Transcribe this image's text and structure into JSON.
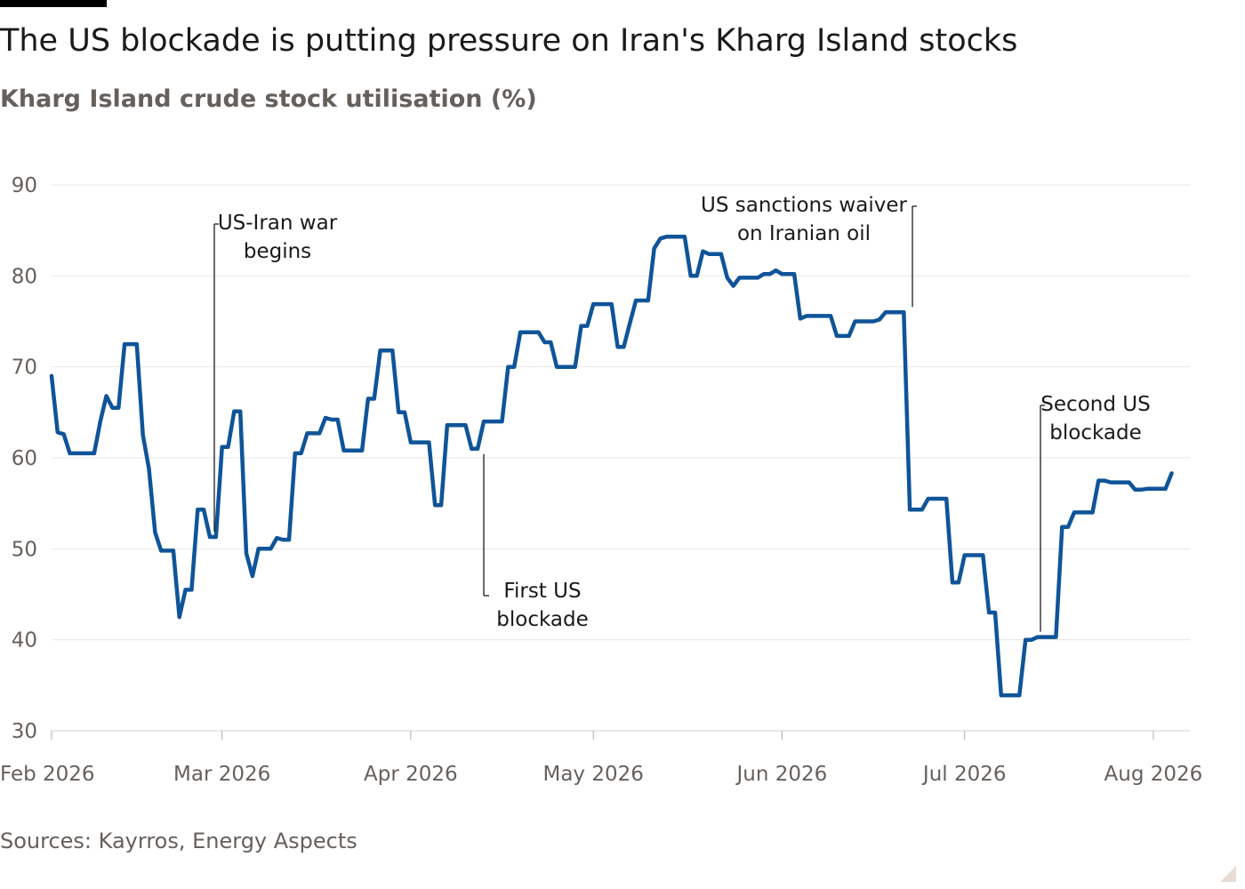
{
  "header": {
    "title": "The US blockade is putting pressure on Iran's Kharg Island stocks",
    "subtitle": "Kharg Island crude stock utilisation (%)"
  },
  "footer": {
    "source": "Sources: Kayrros, Energy Aspects"
  },
  "colors": {
    "line": "#0f5499",
    "grid": "#ece6e1",
    "text": "#1a1a1a",
    "muted": "#66605c"
  },
  "chart_data": {
    "type": "line",
    "title": "The US blockade is putting pressure on Iran's Kharg Island stocks",
    "subtitle": "Kharg Island crude stock utilisation (%)",
    "xlabel": "",
    "ylabel": "",
    "xlim": [
      "2026-02-01",
      "2026-08-07"
    ],
    "ylim": [
      30,
      90
    ],
    "grid": true,
    "legend": "none",
    "y_ticks": [
      "30",
      "40",
      "50",
      "60",
      "70",
      "80",
      "90"
    ],
    "x_ticks": [
      {
        "date": "2026-02-01",
        "label": "Feb 2026"
      },
      {
        "date": "2026-03-01",
        "label": "Mar 2026"
      },
      {
        "date": "2026-04-01",
        "label": "Apr 2026"
      },
      {
        "date": "2026-05-01",
        "label": "May 2026"
      },
      {
        "date": "2026-06-01",
        "label": "Jun 2026"
      },
      {
        "date": "2026-07-01",
        "label": "Jul 2026"
      },
      {
        "date": "2026-08-01",
        "label": "Aug 2026"
      }
    ],
    "series": [
      {
        "points": [
          [
            "2026-02-01",
            69.0
          ],
          [
            "2026-02-02",
            62.8
          ],
          [
            "2026-02-03",
            62.6
          ],
          [
            "2026-02-04",
            60.5
          ],
          [
            "2026-02-05",
            60.5
          ],
          [
            "2026-02-06",
            60.5
          ],
          [
            "2026-02-07",
            60.5
          ],
          [
            "2026-02-08",
            60.5
          ],
          [
            "2026-02-09",
            64.0
          ],
          [
            "2026-02-10",
            66.8
          ],
          [
            "2026-02-11",
            65.5
          ],
          [
            "2026-02-12",
            65.5
          ],
          [
            "2026-02-13",
            72.5
          ],
          [
            "2026-02-14",
            72.5
          ],
          [
            "2026-02-15",
            72.5
          ],
          [
            "2026-02-16",
            62.5
          ],
          [
            "2026-02-17",
            58.8
          ],
          [
            "2026-02-18",
            51.8
          ],
          [
            "2026-02-19",
            49.8
          ],
          [
            "2026-02-20",
            49.8
          ],
          [
            "2026-02-21",
            49.8
          ],
          [
            "2026-02-22",
            42.5
          ],
          [
            "2026-02-23",
            45.5
          ],
          [
            "2026-02-24",
            45.5
          ],
          [
            "2026-02-25",
            54.3
          ],
          [
            "2026-02-26",
            54.3
          ],
          [
            "2026-02-27",
            51.3
          ],
          [
            "2026-02-28",
            51.3
          ],
          [
            "2026-03-01",
            61.2
          ],
          [
            "2026-03-02",
            61.2
          ],
          [
            "2026-03-03",
            65.1
          ],
          [
            "2026-03-04",
            65.1
          ],
          [
            "2026-03-05",
            49.5
          ],
          [
            "2026-03-06",
            47.0
          ],
          [
            "2026-03-07",
            50.0
          ],
          [
            "2026-03-08",
            50.0
          ],
          [
            "2026-03-09",
            50.0
          ],
          [
            "2026-03-10",
            51.2
          ],
          [
            "2026-03-11",
            51.0
          ],
          [
            "2026-03-12",
            51.0
          ],
          [
            "2026-03-13",
            60.5
          ],
          [
            "2026-03-14",
            60.5
          ],
          [
            "2026-03-15",
            62.7
          ],
          [
            "2026-03-16",
            62.7
          ],
          [
            "2026-03-17",
            62.7
          ],
          [
            "2026-03-18",
            64.4
          ],
          [
            "2026-03-19",
            64.2
          ],
          [
            "2026-03-20",
            64.2
          ],
          [
            "2026-03-21",
            60.8
          ],
          [
            "2026-03-22",
            60.8
          ],
          [
            "2026-03-23",
            60.8
          ],
          [
            "2026-03-24",
            60.8
          ],
          [
            "2026-03-25",
            66.5
          ],
          [
            "2026-03-26",
            66.5
          ],
          [
            "2026-03-27",
            71.8
          ],
          [
            "2026-03-28",
            71.8
          ],
          [
            "2026-03-29",
            71.8
          ],
          [
            "2026-03-30",
            65.0
          ],
          [
            "2026-03-31",
            65.0
          ],
          [
            "2026-04-01",
            61.7
          ],
          [
            "2026-04-02",
            61.7
          ],
          [
            "2026-04-03",
            61.7
          ],
          [
            "2026-04-04",
            61.7
          ],
          [
            "2026-04-05",
            54.8
          ],
          [
            "2026-04-06",
            54.8
          ],
          [
            "2026-04-07",
            63.6
          ],
          [
            "2026-04-08",
            63.6
          ],
          [
            "2026-04-09",
            63.6
          ],
          [
            "2026-04-10",
            63.6
          ],
          [
            "2026-04-11",
            61.0
          ],
          [
            "2026-04-12",
            61.0
          ],
          [
            "2026-04-13",
            64.0
          ],
          [
            "2026-04-14",
            64.0
          ],
          [
            "2026-04-15",
            64.0
          ],
          [
            "2026-04-16",
            64.0
          ],
          [
            "2026-04-17",
            70.0
          ],
          [
            "2026-04-18",
            70.0
          ],
          [
            "2026-04-19",
            73.8
          ],
          [
            "2026-04-20",
            73.8
          ],
          [
            "2026-04-21",
            73.8
          ],
          [
            "2026-04-22",
            73.8
          ],
          [
            "2026-04-23",
            72.7
          ],
          [
            "2026-04-24",
            72.7
          ],
          [
            "2026-04-25",
            70.0
          ],
          [
            "2026-04-26",
            70.0
          ],
          [
            "2026-04-27",
            70.0
          ],
          [
            "2026-04-28",
            70.0
          ],
          [
            "2026-04-29",
            74.5
          ],
          [
            "2026-04-30",
            74.5
          ],
          [
            "2026-05-01",
            76.9
          ],
          [
            "2026-05-02",
            76.9
          ],
          [
            "2026-05-03",
            76.9
          ],
          [
            "2026-05-04",
            76.9
          ],
          [
            "2026-05-05",
            72.2
          ],
          [
            "2026-05-06",
            72.2
          ],
          [
            "2026-05-07",
            74.8
          ],
          [
            "2026-05-08",
            77.3
          ],
          [
            "2026-05-09",
            77.3
          ],
          [
            "2026-05-10",
            77.3
          ],
          [
            "2026-05-11",
            83.0
          ],
          [
            "2026-05-12",
            84.1
          ],
          [
            "2026-05-13",
            84.3
          ],
          [
            "2026-05-14",
            84.3
          ],
          [
            "2026-05-15",
            84.3
          ],
          [
            "2026-05-16",
            84.3
          ],
          [
            "2026-05-17",
            80.0
          ],
          [
            "2026-05-18",
            80.0
          ],
          [
            "2026-05-19",
            82.7
          ],
          [
            "2026-05-20",
            82.4
          ],
          [
            "2026-05-21",
            82.4
          ],
          [
            "2026-05-22",
            82.4
          ],
          [
            "2026-05-23",
            79.8
          ],
          [
            "2026-05-24",
            78.9
          ],
          [
            "2026-05-25",
            79.8
          ],
          [
            "2026-05-26",
            79.8
          ],
          [
            "2026-05-27",
            79.8
          ],
          [
            "2026-05-28",
            79.8
          ],
          [
            "2026-05-29",
            80.2
          ],
          [
            "2026-05-30",
            80.2
          ],
          [
            "2026-05-31",
            80.6
          ],
          [
            "2026-06-01",
            80.2
          ],
          [
            "2026-06-02",
            80.2
          ],
          [
            "2026-06-03",
            80.2
          ],
          [
            "2026-06-04",
            75.3
          ],
          [
            "2026-06-05",
            75.6
          ],
          [
            "2026-06-06",
            75.6
          ],
          [
            "2026-06-07",
            75.6
          ],
          [
            "2026-06-08",
            75.6
          ],
          [
            "2026-06-09",
            75.6
          ],
          [
            "2026-06-10",
            73.4
          ],
          [
            "2026-06-11",
            73.4
          ],
          [
            "2026-06-12",
            73.4
          ],
          [
            "2026-06-13",
            75.0
          ],
          [
            "2026-06-14",
            75.0
          ],
          [
            "2026-06-15",
            75.0
          ],
          [
            "2026-06-16",
            75.0
          ],
          [
            "2026-06-17",
            75.2
          ],
          [
            "2026-06-18",
            76.0
          ],
          [
            "2026-06-19",
            76.0
          ],
          [
            "2026-06-20",
            76.0
          ],
          [
            "2026-06-21",
            76.0
          ],
          [
            "2026-06-22",
            54.3
          ],
          [
            "2026-06-23",
            54.3
          ],
          [
            "2026-06-24",
            54.3
          ],
          [
            "2026-06-25",
            55.5
          ],
          [
            "2026-06-26",
            55.5
          ],
          [
            "2026-06-27",
            55.5
          ],
          [
            "2026-06-28",
            55.5
          ],
          [
            "2026-06-29",
            46.3
          ],
          [
            "2026-06-30",
            46.3
          ],
          [
            "2026-07-01",
            49.3
          ],
          [
            "2026-07-02",
            49.3
          ],
          [
            "2026-07-03",
            49.3
          ],
          [
            "2026-07-04",
            49.3
          ],
          [
            "2026-07-05",
            43.0
          ],
          [
            "2026-07-06",
            43.0
          ],
          [
            "2026-07-07",
            33.9
          ],
          [
            "2026-07-08",
            33.9
          ],
          [
            "2026-07-09",
            33.9
          ],
          [
            "2026-07-10",
            33.9
          ],
          [
            "2026-07-11",
            40.0
          ],
          [
            "2026-07-12",
            40.0
          ],
          [
            "2026-07-13",
            40.3
          ],
          [
            "2026-07-14",
            40.3
          ],
          [
            "2026-07-15",
            40.3
          ],
          [
            "2026-07-16",
            40.3
          ],
          [
            "2026-07-17",
            52.4
          ],
          [
            "2026-07-18",
            52.4
          ],
          [
            "2026-07-19",
            54.0
          ],
          [
            "2026-07-20",
            54.0
          ],
          [
            "2026-07-21",
            54.0
          ],
          [
            "2026-07-22",
            54.0
          ],
          [
            "2026-07-23",
            57.5
          ],
          [
            "2026-07-24",
            57.5
          ],
          [
            "2026-07-25",
            57.3
          ],
          [
            "2026-07-26",
            57.3
          ],
          [
            "2026-07-27",
            57.3
          ],
          [
            "2026-07-28",
            57.3
          ],
          [
            "2026-07-29",
            56.5
          ],
          [
            "2026-07-30",
            56.5
          ],
          [
            "2026-07-31",
            56.6
          ],
          [
            "2026-08-01",
            56.6
          ],
          [
            "2026-08-02",
            56.6
          ],
          [
            "2026-08-03",
            56.6
          ],
          [
            "2026-08-04",
            58.3
          ]
        ]
      }
    ],
    "annotations": [
      {
        "name": "war-begins",
        "lines": [
          "US-Iran war",
          "begins"
        ],
        "date": "2026-02-28",
        "value": 51.3,
        "position": "above"
      },
      {
        "name": "first-blockade",
        "lines": [
          "First US",
          "blockade"
        ],
        "date": "2026-04-12",
        "value": 61.0,
        "position": "below"
      },
      {
        "name": "sanctions-waiver",
        "lines": [
          "US sanctions waiver",
          "on Iranian oil"
        ],
        "date": "2026-06-21",
        "value": 76.0,
        "position": "above"
      },
      {
        "name": "second-blockade",
        "lines": [
          "Second US",
          "blockade"
        ],
        "date": "2026-07-13",
        "value": 40.3,
        "position": "above"
      }
    ]
  }
}
